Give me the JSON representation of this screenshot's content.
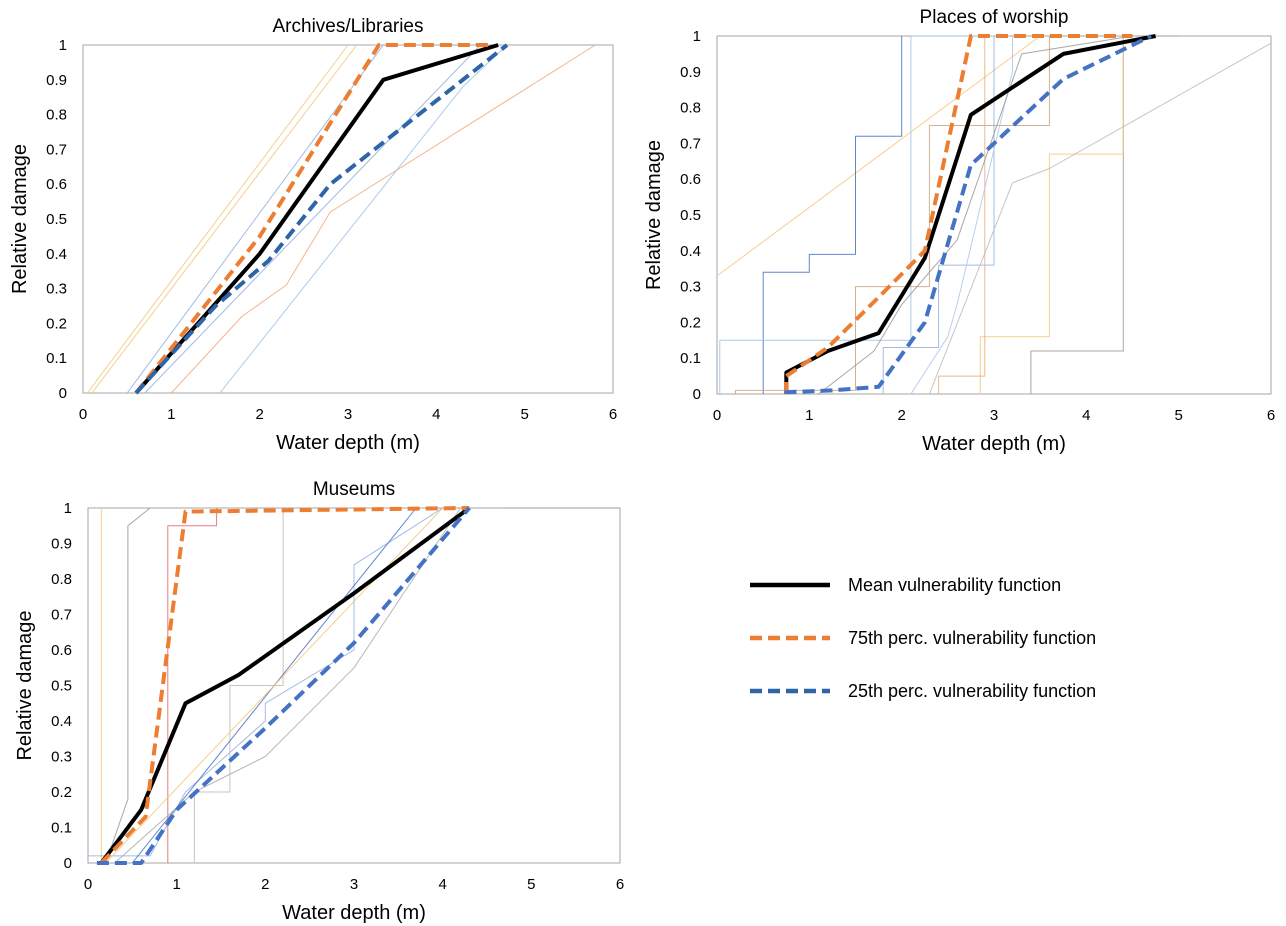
{
  "legend": {
    "placement": "right",
    "items": [
      {
        "label": "Mean vulnerability function",
        "color": "#000000",
        "dashed": false
      },
      {
        "label": "75th perc. vulnerability function",
        "color": "#ED7D31",
        "dashed": true
      },
      {
        "label": "25th perc. vulnerability function",
        "color": "#2E64A8",
        "dashed": true
      }
    ]
  },
  "chart_data": [
    {
      "type": "line",
      "title": "Archives/Libraries",
      "xlabel": "Water depth (m)",
      "ylabel": "Relative damage",
      "xlim": [
        0,
        6
      ],
      "ylim": [
        0,
        1
      ],
      "xticks": [
        "0",
        "1",
        "2",
        "3",
        "4",
        "5",
        "6"
      ],
      "yticks": [
        "0",
        "0.1",
        "0.2",
        "0.3",
        "0.4",
        "0.5",
        "0.6",
        "0.7",
        "0.8",
        "0.9",
        "1"
      ],
      "grid": false,
      "series": [
        {
          "name": "Mean vulnerability function",
          "color": "#000000",
          "width": 4,
          "dashed": false,
          "points": [
            [
              0.6,
              0
            ],
            [
              2.0,
              0.4
            ],
            [
              3.4,
              0.9
            ],
            [
              4.7,
              1
            ]
          ]
        },
        {
          "name": "75th perc. vulnerability function",
          "color": "#ED7D31",
          "width": 4,
          "dashed": true,
          "points": [
            [
              0.6,
              0
            ],
            [
              2.0,
              0.45
            ],
            [
              3.35,
              1
            ],
            [
              4.6,
              1
            ]
          ]
        },
        {
          "name": "25th perc. vulnerability function",
          "color": "#2E64A8",
          "width": 4,
          "dashed": true,
          "points": [
            [
              0.6,
              0
            ],
            [
              1.5,
              0.25
            ],
            [
              2.1,
              0.38
            ],
            [
              2.8,
              0.6
            ],
            [
              3.7,
              0.78
            ],
            [
              4.8,
              1
            ]
          ]
        },
        {
          "color": "#F4C77A",
          "width": 1,
          "points": [
            [
              0.05,
              0
            ],
            [
              3.0,
              1
            ]
          ]
        },
        {
          "color": "#F4C77A",
          "width": 1,
          "points": [
            [
              0.1,
              0
            ],
            [
              3.1,
              1
            ]
          ]
        },
        {
          "color": "#8FB0DE",
          "width": 1,
          "points": [
            [
              0.5,
              0
            ],
            [
              3.4,
              1
            ]
          ]
        },
        {
          "color": "#F0A878",
          "width": 1,
          "points": [
            [
              1.0,
              0
            ],
            [
              1.8,
              0.22
            ],
            [
              2.3,
              0.31
            ],
            [
              2.8,
              0.52
            ],
            [
              5.8,
              1
            ]
          ]
        },
        {
          "color": "#9DC3E6",
          "width": 1,
          "points": [
            [
              1.55,
              0
            ],
            [
              4.3,
              0.88
            ],
            [
              4.8,
              1
            ]
          ]
        },
        {
          "color": "#8FB0DE",
          "width": 1,
          "points": [
            [
              0.7,
              0
            ],
            [
              4.5,
              1
            ]
          ]
        }
      ]
    },
    {
      "type": "line",
      "title": "Places of worship",
      "xlabel": "Water depth (m)",
      "ylabel": "Relative damage",
      "xlim": [
        0,
        6
      ],
      "ylim": [
        0,
        1
      ],
      "xticks": [
        "0",
        "1",
        "2",
        "3",
        "4",
        "5",
        "6"
      ],
      "yticks": [
        "0",
        "0.1",
        "0.2",
        "0.3",
        "0.4",
        "0.5",
        "0.6",
        "0.7",
        "0.8",
        "0.9",
        "1"
      ],
      "grid": false,
      "series": [
        {
          "name": "Mean vulnerability function",
          "color": "#000000",
          "width": 4,
          "dashed": false,
          "points": [
            [
              0.75,
              0
            ],
            [
              0.75,
              0.06
            ],
            [
              1.2,
              0.12
            ],
            [
              1.75,
              0.17
            ],
            [
              2.25,
              0.38
            ],
            [
              2.75,
              0.78
            ],
            [
              3.75,
              0.95
            ],
            [
              4.75,
              1
            ]
          ]
        },
        {
          "name": "75th perc. vulnerability function",
          "color": "#ED7D31",
          "width": 4,
          "dashed": true,
          "points": [
            [
              0.75,
              0
            ],
            [
              0.75,
              0.05
            ],
            [
              1.2,
              0.13
            ],
            [
              1.75,
              0.27
            ],
            [
              2.25,
              0.4
            ],
            [
              2.75,
              1
            ],
            [
              4.5,
              1
            ]
          ]
        },
        {
          "name": "25th perc. vulnerability function",
          "color": "#4472C4",
          "width": 4,
          "dashed": true,
          "points": [
            [
              0.75,
              0
            ],
            [
              0.75,
              0.005
            ],
            [
              1.25,
              0.01
            ],
            [
              1.75,
              0.02
            ],
            [
              2.25,
              0.2
            ],
            [
              2.75,
              0.64
            ],
            [
              3.75,
              0.88
            ],
            [
              4.7,
              1
            ]
          ]
        },
        {
          "color": "#F4C77A",
          "width": 1,
          "points": [
            [
              0,
              0.33
            ],
            [
              3.5,
              1
            ]
          ]
        },
        {
          "color": "#4472C4",
          "width": 1,
          "points": [
            [
              0.5,
              0
            ],
            [
              0.5,
              0.34
            ],
            [
              1.0,
              0.34
            ],
            [
              1.0,
              0.39
            ],
            [
              1.5,
              0.39
            ],
            [
              1.5,
              0.72
            ],
            [
              2.0,
              0.72
            ],
            [
              2.0,
              1
            ]
          ]
        },
        {
          "color": "#9DC3E6",
          "width": 1,
          "points": [
            [
              0.03,
              0
            ],
            [
              0.03,
              0.15
            ],
            [
              2.1,
              0.15
            ],
            [
              2.1,
              1
            ],
            [
              3.0,
              1
            ]
          ]
        },
        {
          "color": "#999999",
          "width": 1,
          "points": [
            [
              3.4,
              0
            ],
            [
              3.4,
              0.12
            ],
            [
              4.4,
              0.12
            ],
            [
              4.4,
              1
            ],
            [
              5.0,
              1
            ]
          ]
        },
        {
          "color": "#F4C77A",
          "width": 1,
          "points": [
            [
              2.85,
              0
            ],
            [
              2.85,
              0.16
            ],
            [
              3.6,
              0.16
            ],
            [
              3.6,
              0.67
            ],
            [
              4.4,
              0.67
            ],
            [
              4.4,
              1
            ]
          ]
        },
        {
          "color": "#C9A27A",
          "width": 1,
          "points": [
            [
              0.2,
              0
            ],
            [
              0.2,
              0.01
            ],
            [
              1.5,
              0.01
            ],
            [
              1.5,
              0.3
            ],
            [
              2.3,
              0.3
            ],
            [
              2.3,
              0.75
            ],
            [
              3.6,
              0.75
            ],
            [
              3.6,
              1
            ]
          ]
        },
        {
          "color": "#8FB0DE",
          "width": 1,
          "points": [
            [
              1.8,
              0
            ],
            [
              1.8,
              0.13
            ],
            [
              2.4,
              0.13
            ],
            [
              2.4,
              0.36
            ],
            [
              3.0,
              0.36
            ],
            [
              3.0,
              1
            ]
          ]
        },
        {
          "color": "#BBBBBB",
          "width": 1,
          "points": [
            [
              2.3,
              0
            ],
            [
              3.2,
              0.59
            ],
            [
              3.6,
              0.63
            ],
            [
              6.0,
              0.98
            ]
          ]
        },
        {
          "color": "#F0A878",
          "width": 1,
          "points": [
            [
              2.4,
              0
            ],
            [
              2.4,
              0.05
            ],
            [
              2.9,
              0.05
            ],
            [
              2.9,
              1
            ]
          ]
        },
        {
          "color": "#AEC7E8",
          "width": 1,
          "points": [
            [
              2.1,
              0
            ],
            [
              2.5,
              0.16
            ],
            [
              2.6,
              0.25
            ],
            [
              3.2,
              0.9
            ],
            [
              3.2,
              1
            ]
          ]
        },
        {
          "color": "#999999",
          "width": 1,
          "points": [
            [
              1.1,
              0
            ],
            [
              1.7,
              0.12
            ],
            [
              2.0,
              0.25
            ],
            [
              2.6,
              0.43
            ],
            [
              3.3,
              0.95
            ],
            [
              4.5,
              1
            ]
          ]
        }
      ]
    },
    {
      "type": "line",
      "title": "Museums",
      "xlabel": "Water depth (m)",
      "ylabel": "Relative damage",
      "xlim": [
        0,
        6
      ],
      "ylim": [
        0,
        1
      ],
      "xticks": [
        "0",
        "1",
        "2",
        "3",
        "4",
        "5",
        "6"
      ],
      "yticks": [
        "0",
        "0.1",
        "0.2",
        "0.3",
        "0.4",
        "0.5",
        "0.6",
        "0.7",
        "0.8",
        "0.9",
        "1"
      ],
      "grid": false,
      "series": [
        {
          "name": "Mean vulnerability function",
          "color": "#000000",
          "width": 4,
          "dashed": false,
          "points": [
            [
              0.15,
              0
            ],
            [
              0.6,
              0.15
            ],
            [
              1.1,
              0.45
            ],
            [
              1.7,
              0.53
            ],
            [
              3.0,
              0.76
            ],
            [
              4.3,
              1
            ]
          ]
        },
        {
          "name": "75th perc. vulnerability function",
          "color": "#ED7D31",
          "width": 4,
          "dashed": true,
          "points": [
            [
              0.15,
              0
            ],
            [
              0.65,
              0.13
            ],
            [
              1.1,
              0.99
            ],
            [
              4.3,
              1
            ]
          ]
        },
        {
          "name": "25th perc. vulnerability function",
          "color": "#4472C4",
          "width": 4,
          "dashed": true,
          "points": [
            [
              0.1,
              0
            ],
            [
              0.6,
              0
            ],
            [
              1.0,
              0.15
            ],
            [
              2.0,
              0.38
            ],
            [
              3.0,
              0.62
            ],
            [
              4.3,
              1
            ]
          ]
        },
        {
          "color": "#999999",
          "width": 1,
          "points": [
            [
              0.2,
              0
            ],
            [
              0.45,
              0.18
            ],
            [
              0.45,
              0.5
            ],
            [
              0.45,
              0.95
            ],
            [
              0.7,
              1
            ]
          ]
        },
        {
          "color": "#F4C77A",
          "width": 1,
          "points": [
            [
              0.15,
              0
            ],
            [
              0.15,
              1
            ]
          ]
        },
        {
          "color": "#E06666",
          "width": 1,
          "points": [
            [
              0.9,
              0
            ],
            [
              0.9,
              0.95
            ],
            [
              1.45,
              0.95
            ],
            [
              1.45,
              1
            ]
          ]
        },
        {
          "color": "#BBBBBB",
          "width": 1,
          "points": [
            [
              1.2,
              0
            ],
            [
              1.2,
              0.2
            ],
            [
              1.6,
              0.2
            ],
            [
              1.6,
              0.5
            ],
            [
              2.2,
              0.5
            ],
            [
              2.2,
              1
            ]
          ]
        },
        {
          "color": "#8FB0DE",
          "width": 1,
          "points": [
            [
              0,
              0.02
            ],
            [
              0.7,
              0.02
            ],
            [
              1.1,
              0.2
            ],
            [
              2.0,
              0.4
            ],
            [
              2.0,
              0.45
            ],
            [
              3.0,
              0.6
            ],
            [
              3.0,
              0.84
            ],
            [
              4.0,
              1
            ]
          ]
        },
        {
          "color": "#4472C4",
          "width": 1,
          "points": [
            [
              0.5,
              0
            ],
            [
              3.7,
              1
            ]
          ]
        },
        {
          "color": "#F4C77A",
          "width": 1,
          "points": [
            [
              0.2,
              0
            ],
            [
              4.0,
              1
            ]
          ]
        },
        {
          "color": "#AAAAAA",
          "width": 1,
          "points": [
            [
              0.3,
              0
            ],
            [
              1.2,
              0.2
            ],
            [
              2.0,
              0.3
            ],
            [
              3.0,
              0.55
            ],
            [
              4.2,
              1
            ]
          ]
        },
        {
          "color": "#999999",
          "width": 1,
          "points": [
            [
              4.7,
              1
            ],
            [
              6.0,
              1
            ]
          ]
        }
      ]
    }
  ]
}
